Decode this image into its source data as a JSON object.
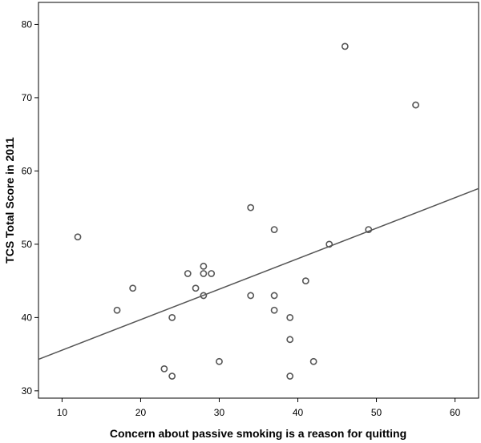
{
  "chart_data": {
    "type": "scatter",
    "title": "",
    "xlabel": "Concern about passive smoking is a reason for quitting",
    "ylabel": "TCS Total Score in 2011",
    "xlim": [
      7,
      63
    ],
    "ylim": [
      29,
      83
    ],
    "x_ticks": [
      10,
      20,
      30,
      40,
      50,
      60
    ],
    "y_ticks": [
      30,
      40,
      50,
      60,
      70,
      80
    ],
    "grid": false,
    "legend": "none",
    "fit_line": {
      "x": [
        7,
        63
      ],
      "y": [
        34.3,
        57.6
      ]
    },
    "points": [
      {
        "x": 12,
        "y": 51
      },
      {
        "x": 17,
        "y": 41
      },
      {
        "x": 19,
        "y": 44
      },
      {
        "x": 23,
        "y": 33
      },
      {
        "x": 24,
        "y": 32
      },
      {
        "x": 24,
        "y": 40
      },
      {
        "x": 26,
        "y": 46
      },
      {
        "x": 27,
        "y": 44
      },
      {
        "x": 28,
        "y": 47
      },
      {
        "x": 28,
        "y": 46
      },
      {
        "x": 28,
        "y": 43
      },
      {
        "x": 29,
        "y": 46
      },
      {
        "x": 30,
        "y": 34
      },
      {
        "x": 34,
        "y": 55
      },
      {
        "x": 34,
        "y": 43
      },
      {
        "x": 37,
        "y": 52
      },
      {
        "x": 37,
        "y": 43
      },
      {
        "x": 37,
        "y": 41
      },
      {
        "x": 39,
        "y": 40
      },
      {
        "x": 39,
        "y": 37
      },
      {
        "x": 39,
        "y": 32
      },
      {
        "x": 41,
        "y": 45
      },
      {
        "x": 42,
        "y": 34
      },
      {
        "x": 44,
        "y": 50
      },
      {
        "x": 46,
        "y": 77
      },
      {
        "x": 49,
        "y": 52
      },
      {
        "x": 55,
        "y": 69
      }
    ],
    "colors": {
      "marker": "#555555",
      "line": "#555555",
      "axis": "#000000",
      "background": "#ffffff"
    }
  }
}
